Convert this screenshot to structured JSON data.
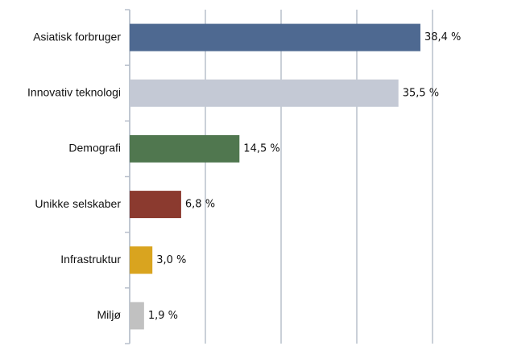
{
  "chart_data": {
    "type": "barh",
    "categories": [
      "Asiatisk forbruger",
      "Innovativ teknologi",
      "Demografi",
      "Unikke selskaber",
      "Infrastruktur",
      "Miljø"
    ],
    "values": [
      38.4,
      35.5,
      14.5,
      6.8,
      3.0,
      1.9
    ],
    "value_labels": [
      "38,4 %",
      "35,5 %",
      "14,5 %",
      "6,8 %",
      "3,0 %",
      "1,9 %"
    ],
    "colors": [
      "#4e6991",
      "#c4c9d5",
      "#50774f",
      "#8b3a2f",
      "#d9a41f",
      "#c1c1c1"
    ],
    "xlim": [
      0,
      40
    ],
    "xticks": [
      0,
      10,
      20,
      30,
      40
    ],
    "grid": true
  }
}
